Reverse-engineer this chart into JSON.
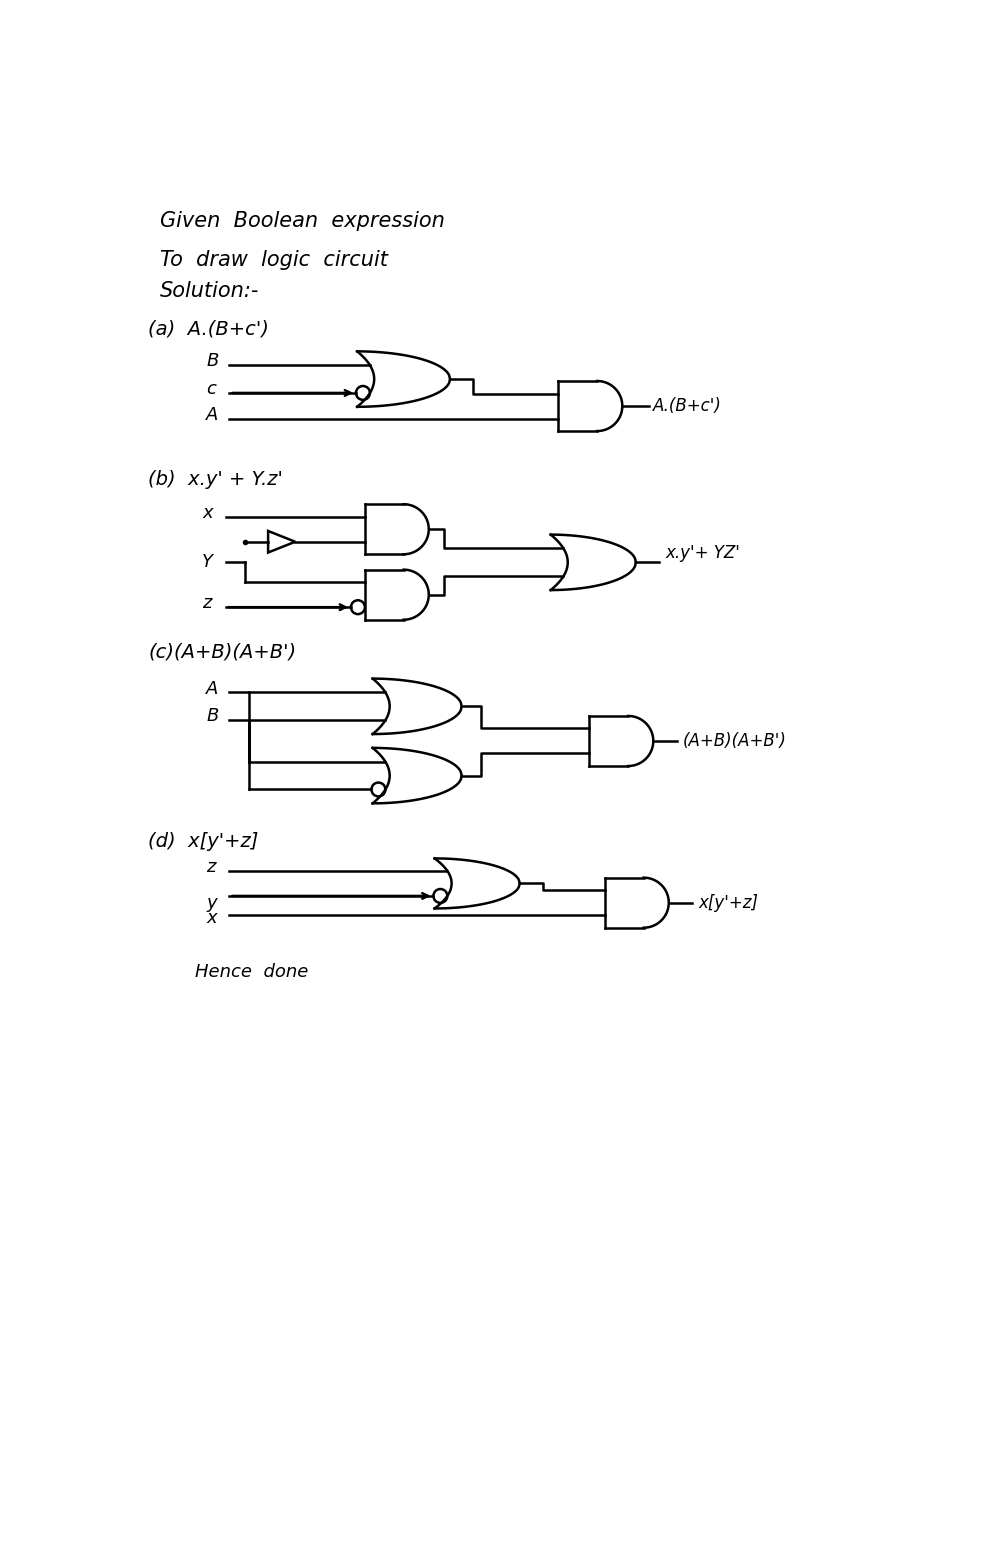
{
  "bg": "#ffffff",
  "lw": 1.8,
  "fs_header": 15,
  "fs_label": 13,
  "fs_text": 12,
  "header": [
    "Given  Boolean  expression",
    "To  draw  logic  circuit",
    "Solution:-"
  ],
  "section_labels": [
    "(a)  A.(B+c')",
    "(b)  x.y' + Y.z'",
    "(c)(A+B)(A+B')",
    "(d)  x[y'+z]"
  ],
  "output_labels": [
    "A.(B+c')",
    "x.y'+ YZ'",
    "(A+B)(A+B')",
    "x[y'+z]"
  ],
  "footer": "Hence  done"
}
